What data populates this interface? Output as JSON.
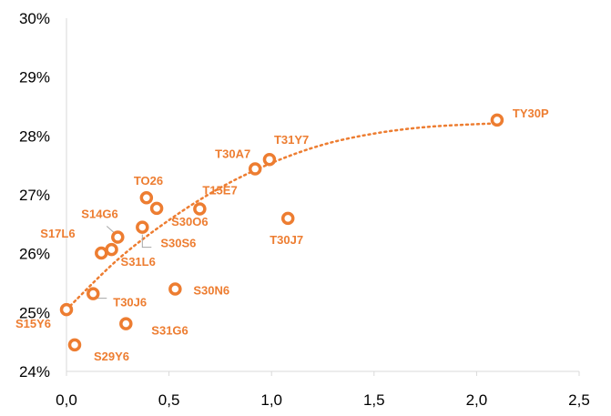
{
  "chart_data": {
    "type": "scatter",
    "x_ticks": [
      "0,0",
      "0,5",
      "1,0",
      "1,5",
      "2,0",
      "2,5"
    ],
    "y_ticks": [
      "24%",
      "25%",
      "26%",
      "27%",
      "28%",
      "29%",
      "30%"
    ],
    "xlim": [
      0,
      2.5
    ],
    "ylim": [
      0.24,
      0.3
    ],
    "grid": false,
    "legend": "none",
    "trendline": "dotted logarithmic-style fit",
    "colors": {
      "marker": "#ED7D31",
      "label": "#ED7D31",
      "axis": "#D9D9D9",
      "leader": "#A6A6A6"
    },
    "points": [
      {
        "label": "S15Y6",
        "x": 0.0,
        "y": 0.2505
      },
      {
        "label": "S29Y6",
        "x": 0.04,
        "y": 0.2445
      },
      {
        "label": "T30J6",
        "x": 0.13,
        "y": 0.2532
      },
      {
        "label": "S17L6",
        "x": 0.17,
        "y": 0.2601
      },
      {
        "label": "S31L6",
        "x": 0.22,
        "y": 0.2607
      },
      {
        "label": "S14G6",
        "x": 0.25,
        "y": 0.2628
      },
      {
        "label": "S31G6",
        "x": 0.29,
        "y": 0.2481
      },
      {
        "label": "S30S6",
        "x": 0.37,
        "y": 0.2645
      },
      {
        "label": "TO26",
        "x": 0.39,
        "y": 0.2695
      },
      {
        "label": "S30O6",
        "x": 0.44,
        "y": 0.2677
      },
      {
        "label": "S30N6",
        "x": 0.53,
        "y": 0.254
      },
      {
        "label": "T15E7",
        "x": 0.65,
        "y": 0.2676
      },
      {
        "label": "T30A7",
        "x": 0.92,
        "y": 0.2744
      },
      {
        "label": "T31Y7",
        "x": 0.99,
        "y": 0.276
      },
      {
        "label": "T30J7",
        "x": 1.08,
        "y": 0.266
      },
      {
        "label": "TY30P",
        "x": 2.1,
        "y": 0.2827
      }
    ],
    "trend_points": [
      {
        "x": 0.0,
        "y": 0.2505
      },
      {
        "x": 0.25,
        "y": 0.259
      },
      {
        "x": 0.5,
        "y": 0.2657
      },
      {
        "x": 0.75,
        "y": 0.2712
      },
      {
        "x": 1.0,
        "y": 0.2754
      },
      {
        "x": 1.25,
        "y": 0.2785
      },
      {
        "x": 1.5,
        "y": 0.2804
      },
      {
        "x": 1.75,
        "y": 0.2815
      },
      {
        "x": 2.0,
        "y": 0.282
      },
      {
        "x": 2.1,
        "y": 0.2821
      }
    ]
  }
}
